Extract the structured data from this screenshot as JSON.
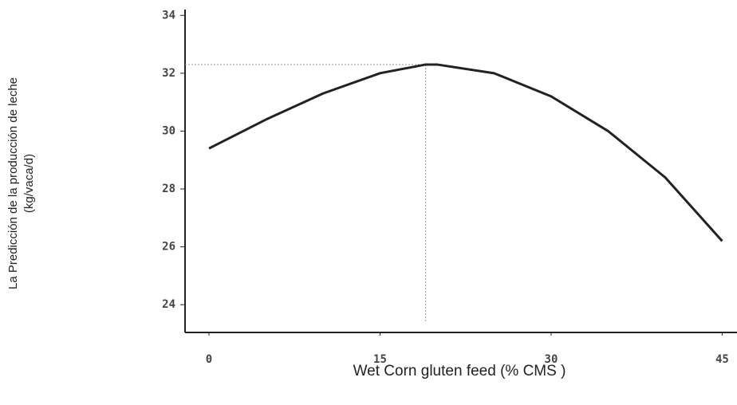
{
  "chart_data": {
    "type": "line",
    "x_label": "Wet Corn gluten feed (% CMS )",
    "y_label": [
      "La Predicción de la producción de leche",
      "(kg/vaca/d)"
    ],
    "x": [
      0,
      5,
      10,
      15,
      19,
      20,
      25,
      30,
      35,
      40,
      45
    ],
    "series": [
      {
        "color": "#222222",
        "values": [
          29.4,
          30.4,
          31.3,
          32.0,
          32.3,
          32.3,
          32.0,
          31.2,
          30.0,
          28.4,
          26.2
        ]
      }
    ],
    "reference_point": {
      "x": 19,
      "y": 32.3
    },
    "xlim": [
      -2.1,
      46.3
    ],
    "xticks": [
      0,
      15,
      30,
      45
    ],
    "ylim": [
      23.04,
      34.2
    ],
    "yticks": [
      24,
      26,
      28,
      30,
      32,
      34
    ]
  }
}
